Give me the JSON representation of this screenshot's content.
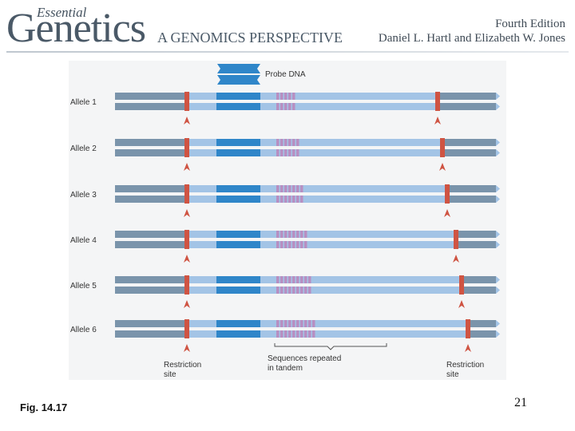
{
  "header": {
    "essential": "Essential",
    "genetics": "Genetics",
    "subtitle": "A GENOMICS PERSPECTIVE",
    "edition": "Fourth Edition",
    "authors": "Daniel L. Hartl and Elizabeth W. Jones"
  },
  "figure": {
    "probe_label": "Probe DNA",
    "restriction_label_line1": "Restriction",
    "restriction_label_line2": "site",
    "tandem_label_line1": "Sequences repeated",
    "tandem_label_line2": "in tandem",
    "alleles": [
      {
        "label": "Allele 1",
        "repeat_units": 5
      },
      {
        "label": "Allele 2",
        "repeat_units": 6
      },
      {
        "label": "Allele 3",
        "repeat_units": 7
      },
      {
        "label": "Allele 4",
        "repeat_units": 8
      },
      {
        "label": "Allele 5",
        "repeat_units": 9
      },
      {
        "label": "Allele 6",
        "repeat_units": 10
      }
    ],
    "colors": {
      "flank_dna": "#7a94ab",
      "interior_dna": "#a3c4e6",
      "probe_region": "#2f86c9",
      "restriction_site": "#cf5443",
      "repeat_unit": "#b78fc2",
      "arrow": "#cf5443"
    }
  },
  "caption": "Fig. 14.17",
  "page_number": "21"
}
